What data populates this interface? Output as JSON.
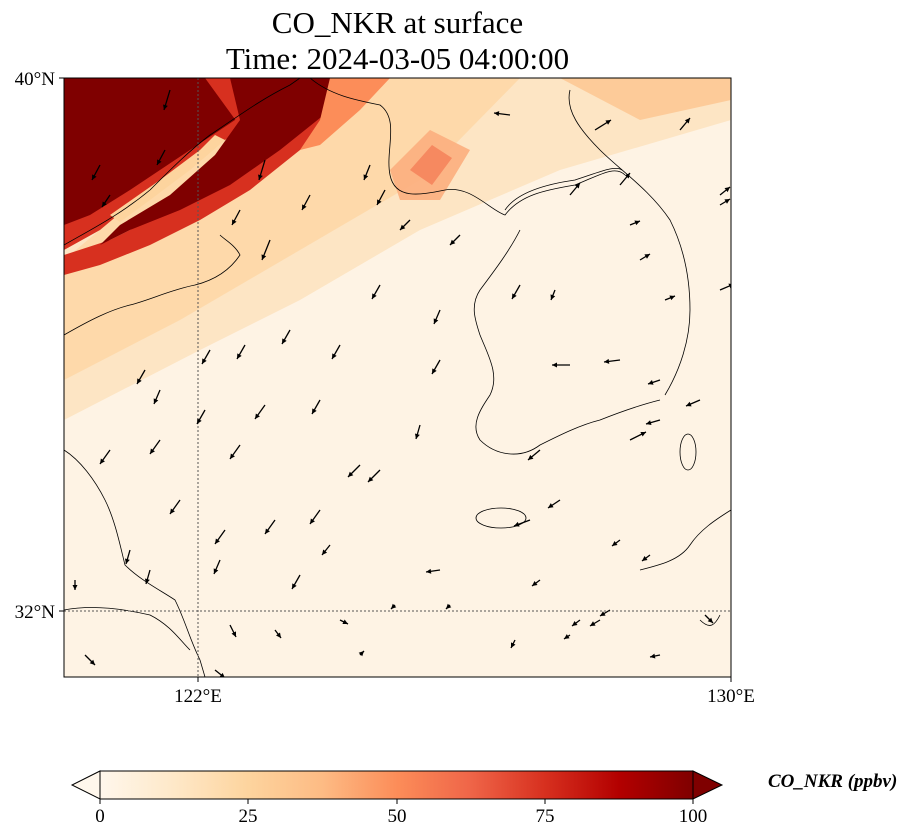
{
  "title": {
    "line1": "CO_NKR at surface",
    "line2": "Time: 2024-03-05 04:00:00"
  },
  "map": {
    "projection": "lat-lon",
    "lon_range": [
      120,
      130
    ],
    "lat_range": [
      31,
      40
    ],
    "lat_ticks": [
      {
        "value": 40,
        "label": "40°N"
      },
      {
        "value": 32,
        "label": "32°N"
      }
    ],
    "lon_ticks": [
      {
        "value": 122,
        "label": "122°E"
      },
      {
        "value": 130,
        "label": "130°E"
      }
    ],
    "gridlines": [
      {
        "kind": "lon",
        "value": 122
      },
      {
        "kind": "lat",
        "value": 32
      }
    ],
    "field_description": "CO_NKR concentration shaded; high values (>100 ppbv) in a NE-SW plume over northern Bohai/Liaoning coast, low values elsewhere",
    "wind_vectors_shown": true
  },
  "colorbar": {
    "label": "CO_NKR (ppbv)",
    "ticks": [
      "0",
      "25",
      "50",
      "75",
      "100"
    ],
    "min": 0,
    "max": 100,
    "extend": "both",
    "colormap": "OrRd",
    "colors": [
      "#fff7ec",
      "#fee8c8",
      "#fdd49e",
      "#fdbb84",
      "#fc8d59",
      "#ef6548",
      "#d7301f",
      "#b30000",
      "#7f0000"
    ]
  }
}
